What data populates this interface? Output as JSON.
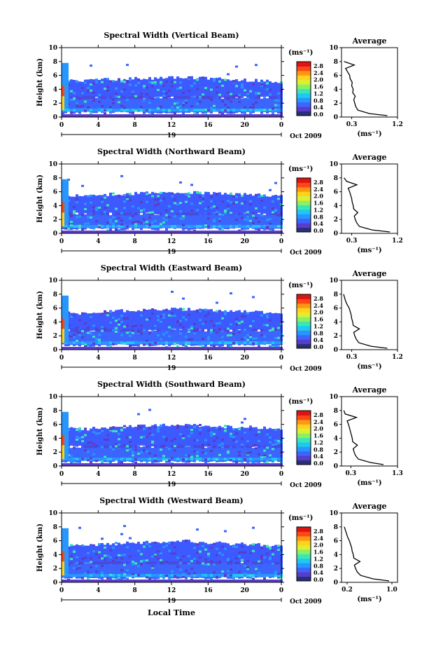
{
  "figure": {
    "xlabel": "Local Time",
    "month_label": "Oct 2009",
    "day_label": "19",
    "ylabel": "Height (km)",
    "unit": "(ms⁻¹)",
    "avg_title": "Average",
    "colorbar_ticks": [
      "0.0",
      "0.4",
      "0.8",
      "1.2",
      "1.6",
      "2.0",
      "2.4",
      "2.8"
    ],
    "colorbar_colors": [
      "#283078",
      "#5a3cc8",
      "#3c64ff",
      "#2896ff",
      "#1ec8f0",
      "#3ce6b4",
      "#8cf064",
      "#dcf032",
      "#ffd21e",
      "#ff9614",
      "#ff4614",
      "#dc1414"
    ],
    "height_ticks": [
      0,
      2,
      4,
      6,
      8,
      10
    ],
    "time_ticks": [
      0,
      4,
      8,
      12,
      16,
      20,
      0
    ]
  },
  "chart_data": [
    {
      "type": "heatmap",
      "title": "Spectral Width (Vertical Beam)",
      "xlabel": "Local Time",
      "ylabel": "Height (km)",
      "x_range": [
        0,
        24
      ],
      "y_range": [
        0,
        10
      ],
      "colorbar_range": [
        0.0,
        3.0
      ],
      "cloud_top_km": [
        5.6,
        5.5,
        5.7,
        5.8,
        5.9,
        6.0,
        5.8,
        5.6,
        5.5,
        5.3
      ],
      "average_profile": {
        "title": "Average",
        "xlabel": "(ms⁻¹)",
        "xlim": [
          0.1,
          1.2
        ],
        "xticks": [
          "0.3",
          "1.2"
        ],
        "height_km": [
          0.2,
          0.5,
          1.0,
          1.5,
          2.0,
          2.5,
          3.0,
          3.5,
          4.0,
          4.5,
          5.0,
          5.5,
          6.0,
          6.5,
          7.0,
          7.5,
          8.0
        ],
        "width": [
          1.0,
          0.65,
          0.42,
          0.38,
          0.36,
          0.34,
          0.37,
          0.32,
          0.33,
          0.3,
          0.31,
          0.27,
          0.26,
          0.22,
          0.18,
          0.35,
          0.15
        ]
      }
    },
    {
      "type": "heatmap",
      "title": "Spectral Width (Northward Beam)",
      "xlabel": "Local Time",
      "ylabel": "Height (km)",
      "x_range": [
        0,
        24
      ],
      "y_range": [
        0,
        10
      ],
      "colorbar_range": [
        0.0,
        3.0
      ],
      "cloud_top_km": [
        5.7,
        5.6,
        5.9,
        6.0,
        6.1,
        6.2,
        6.0,
        5.9,
        5.8,
        5.6
      ],
      "average_profile": {
        "title": "Average",
        "xlabel": "(ms⁻¹)",
        "xlim": [
          0.1,
          1.2
        ],
        "xticks": [
          "0.3",
          "1.2"
        ],
        "height_km": [
          0.2,
          0.5,
          1.0,
          1.5,
          2.0,
          2.5,
          3.0,
          3.5,
          4.0,
          4.5,
          5.0,
          5.5,
          6.0,
          6.5,
          7.0,
          7.5,
          8.0
        ],
        "width": [
          1.05,
          0.7,
          0.45,
          0.4,
          0.37,
          0.35,
          0.42,
          0.34,
          0.33,
          0.31,
          0.3,
          0.28,
          0.26,
          0.23,
          0.4,
          0.2,
          0.15
        ]
      }
    },
    {
      "type": "heatmap",
      "title": "Spectral Width (Eastward Beam)",
      "xlabel": "Local Time",
      "ylabel": "Height (km)",
      "x_range": [
        0,
        24
      ],
      "y_range": [
        0,
        10
      ],
      "colorbar_range": [
        0.0,
        3.0
      ],
      "cloud_top_km": [
        5.6,
        5.5,
        5.8,
        5.9,
        6.0,
        6.1,
        5.9,
        5.8,
        5.7,
        5.5
      ],
      "average_profile": {
        "title": "Average",
        "xlabel": "(ms⁻¹)",
        "xlim": [
          0.1,
          1.2
        ],
        "xticks": [
          "0.3",
          "1.2"
        ],
        "height_km": [
          0.2,
          0.5,
          1.0,
          1.5,
          2.0,
          2.5,
          3.0,
          3.5,
          4.0,
          4.5,
          5.0,
          5.5,
          6.0,
          6.5,
          7.0,
          7.5,
          8.0
        ],
        "width": [
          1.0,
          0.68,
          0.44,
          0.39,
          0.36,
          0.34,
          0.45,
          0.33,
          0.32,
          0.3,
          0.29,
          0.27,
          0.25,
          0.21,
          0.18,
          0.16,
          0.14
        ]
      }
    },
    {
      "type": "heatmap",
      "title": "Spectral Width (Southward Beam)",
      "xlabel": "Local Time",
      "ylabel": "Height (km)",
      "x_range": [
        0,
        24
      ],
      "y_range": [
        0,
        10
      ],
      "colorbar_range": [
        0.0,
        3.0
      ],
      "cloud_top_km": [
        5.7,
        5.6,
        5.8,
        6.0,
        6.1,
        6.2,
        6.0,
        5.9,
        5.8,
        5.6
      ],
      "average_profile": {
        "title": "Average",
        "xlabel": "(ms⁻¹)",
        "xlim": [
          0.1,
          1.3
        ],
        "xticks": [
          "0.3",
          "1.3"
        ],
        "height_km": [
          0.2,
          0.5,
          1.0,
          1.5,
          2.0,
          2.5,
          3.0,
          3.5,
          4.0,
          4.5,
          5.0,
          5.5,
          6.0,
          6.5,
          7.0,
          7.5,
          8.0
        ],
        "width": [
          1.0,
          0.72,
          0.46,
          0.4,
          0.37,
          0.35,
          0.44,
          0.34,
          0.33,
          0.31,
          0.29,
          0.27,
          0.25,
          0.22,
          0.42,
          0.18,
          0.15
        ]
      }
    },
    {
      "type": "heatmap",
      "title": "Spectral Width (Westward Beam)",
      "xlabel": "Local Time",
      "ylabel": "Height (km)",
      "x_range": [
        0,
        24
      ],
      "y_range": [
        0,
        10
      ],
      "colorbar_range": [
        0.0,
        3.0
      ],
      "cloud_top_km": [
        5.6,
        5.5,
        5.8,
        6.0,
        6.1,
        6.2,
        6.0,
        5.8,
        5.7,
        5.5
      ],
      "average_profile": {
        "title": "Average",
        "xlabel": "(ms⁻¹)",
        "xlim": [
          0.1,
          1.1
        ],
        "xticks": [
          "0.2",
          "1.0"
        ],
        "height_km": [
          0.2,
          0.5,
          1.0,
          1.5,
          2.0,
          2.5,
          3.0,
          3.5,
          4.0,
          4.5,
          5.0,
          5.5,
          6.0,
          6.5,
          7.0,
          7.5,
          8.0
        ],
        "width": [
          0.95,
          0.66,
          0.44,
          0.38,
          0.35,
          0.33,
          0.43,
          0.32,
          0.31,
          0.29,
          0.28,
          0.26,
          0.24,
          0.21,
          0.19,
          0.17,
          0.15
        ]
      }
    }
  ]
}
